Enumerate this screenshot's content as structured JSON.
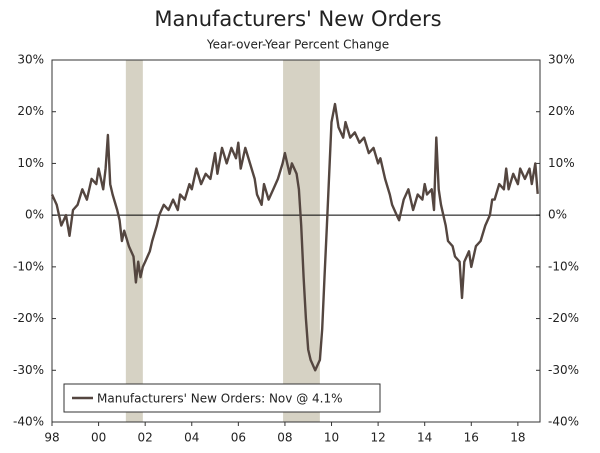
{
  "chart_data": {
    "type": "line",
    "title": "Manufacturers' New Orders",
    "subtitle": "Year-over-Year Percent Change",
    "xlim": [
      1998,
      2018.95
    ],
    "ylim": [
      -40,
      30
    ],
    "xticks": [
      {
        "value": 1998,
        "label": "98"
      },
      {
        "value": 2000,
        "label": "00"
      },
      {
        "value": 2002,
        "label": "02"
      },
      {
        "value": 2004,
        "label": "04"
      },
      {
        "value": 2006,
        "label": "06"
      },
      {
        "value": 2008,
        "label": "08"
      },
      {
        "value": 2010,
        "label": "10"
      },
      {
        "value": 2012,
        "label": "12"
      },
      {
        "value": 2014,
        "label": "14"
      },
      {
        "value": 2016,
        "label": "16"
      },
      {
        "value": 2018,
        "label": "18"
      }
    ],
    "yticks": [
      {
        "value": -40,
        "label": "-40%"
      },
      {
        "value": -30,
        "label": "-30%"
      },
      {
        "value": -20,
        "label": "-20%"
      },
      {
        "value": -10,
        "label": "-10%"
      },
      {
        "value": 0,
        "label": "0%"
      },
      {
        "value": 10,
        "label": "10%"
      },
      {
        "value": 20,
        "label": "20%"
      },
      {
        "value": 30,
        "label": "30%"
      }
    ],
    "recessions": [
      [
        2001.17,
        2001.9
      ],
      [
        2007.92,
        2009.5
      ]
    ],
    "recession_color": "#d6d2c4",
    "zero_line": true,
    "legend": "lower left",
    "x": [
      1998.0,
      1998.2,
      1998.4,
      1998.6,
      1998.75,
      1998.9,
      1999.1,
      1999.3,
      1999.5,
      1999.7,
      1999.9,
      2000.0,
      2000.2,
      2000.3,
      2000.4,
      2000.5,
      2000.6,
      2000.8,
      2000.9,
      2001.0,
      2001.1,
      2001.3,
      2001.5,
      2001.6,
      2001.7,
      2001.8,
      2001.9,
      2002.0,
      2002.2,
      2002.3,
      2002.5,
      2002.6,
      2002.8,
      2003.0,
      2003.2,
      2003.4,
      2003.5,
      2003.7,
      2003.9,
      2004.0,
      2004.2,
      2004.4,
      2004.6,
      2004.8,
      2005.0,
      2005.1,
      2005.3,
      2005.5,
      2005.7,
      2005.9,
      2006.0,
      2006.1,
      2006.3,
      2006.5,
      2006.7,
      2006.8,
      2007.0,
      2007.1,
      2007.3,
      2007.5,
      2007.7,
      2007.9,
      2008.0,
      2008.2,
      2008.3,
      2008.5,
      2008.6,
      2008.7,
      2008.8,
      2008.9,
      2009.0,
      2009.1,
      2009.3,
      2009.5,
      2009.6,
      2009.7,
      2009.8,
      2009.9,
      2010.0,
      2010.15,
      2010.3,
      2010.5,
      2010.6,
      2010.8,
      2011.0,
      2011.2,
      2011.4,
      2011.6,
      2011.8,
      2012.0,
      2012.1,
      2012.3,
      2012.5,
      2012.6,
      2012.8,
      2012.9,
      2013.1,
      2013.3,
      2013.5,
      2013.7,
      2013.9,
      2014.0,
      2014.1,
      2014.3,
      2014.4,
      2014.5,
      2014.6,
      2014.7,
      2014.9,
      2015.0,
      2015.2,
      2015.3,
      2015.5,
      2015.6,
      2015.7,
      2015.9,
      2016.0,
      2016.2,
      2016.4,
      2016.6,
      2016.8,
      2016.9,
      2017.0,
      2017.2,
      2017.4,
      2017.5,
      2017.6,
      2017.8,
      2018.0,
      2018.1,
      2018.3,
      2018.5,
      2018.6,
      2018.75,
      2018.85
    ],
    "series": [
      {
        "name": "Manufacturers' New Orders: Nov @ 4.1%",
        "color": "#544640",
        "values": [
          4,
          2,
          -2,
          0,
          -4,
          1,
          2,
          5,
          3,
          7,
          6,
          9,
          5,
          9,
          15.5,
          6,
          4,
          1,
          -1,
          -5,
          -3,
          -6,
          -8,
          -13,
          -9,
          -12,
          -10,
          -9,
          -7,
          -5,
          -2,
          0,
          2,
          1,
          3,
          1,
          4,
          3,
          6,
          5,
          9,
          6,
          8,
          7,
          12,
          8,
          13,
          10,
          13,
          11,
          14,
          9,
          13,
          10,
          7,
          4,
          2,
          6,
          3,
          5,
          7,
          10,
          12,
          8,
          10,
          8,
          5,
          -2,
          -12,
          -20,
          -26,
          -28,
          -30,
          -28,
          -22,
          -12,
          -2,
          8,
          18,
          21.5,
          17,
          15,
          18,
          15,
          16,
          14,
          15,
          12,
          13,
          10,
          11,
          7,
          4,
          2,
          0,
          -1,
          3,
          5,
          1,
          4,
          3,
          6,
          4,
          5,
          1,
          15,
          5,
          2,
          -2,
          -5,
          -6,
          -8,
          -9,
          -16,
          -9,
          -7,
          -10,
          -6,
          -5,
          -2,
          0,
          3,
          3,
          6,
          5,
          9,
          5,
          8,
          6,
          9,
          7,
          9,
          6,
          10,
          4.1
        ]
      }
    ]
  }
}
